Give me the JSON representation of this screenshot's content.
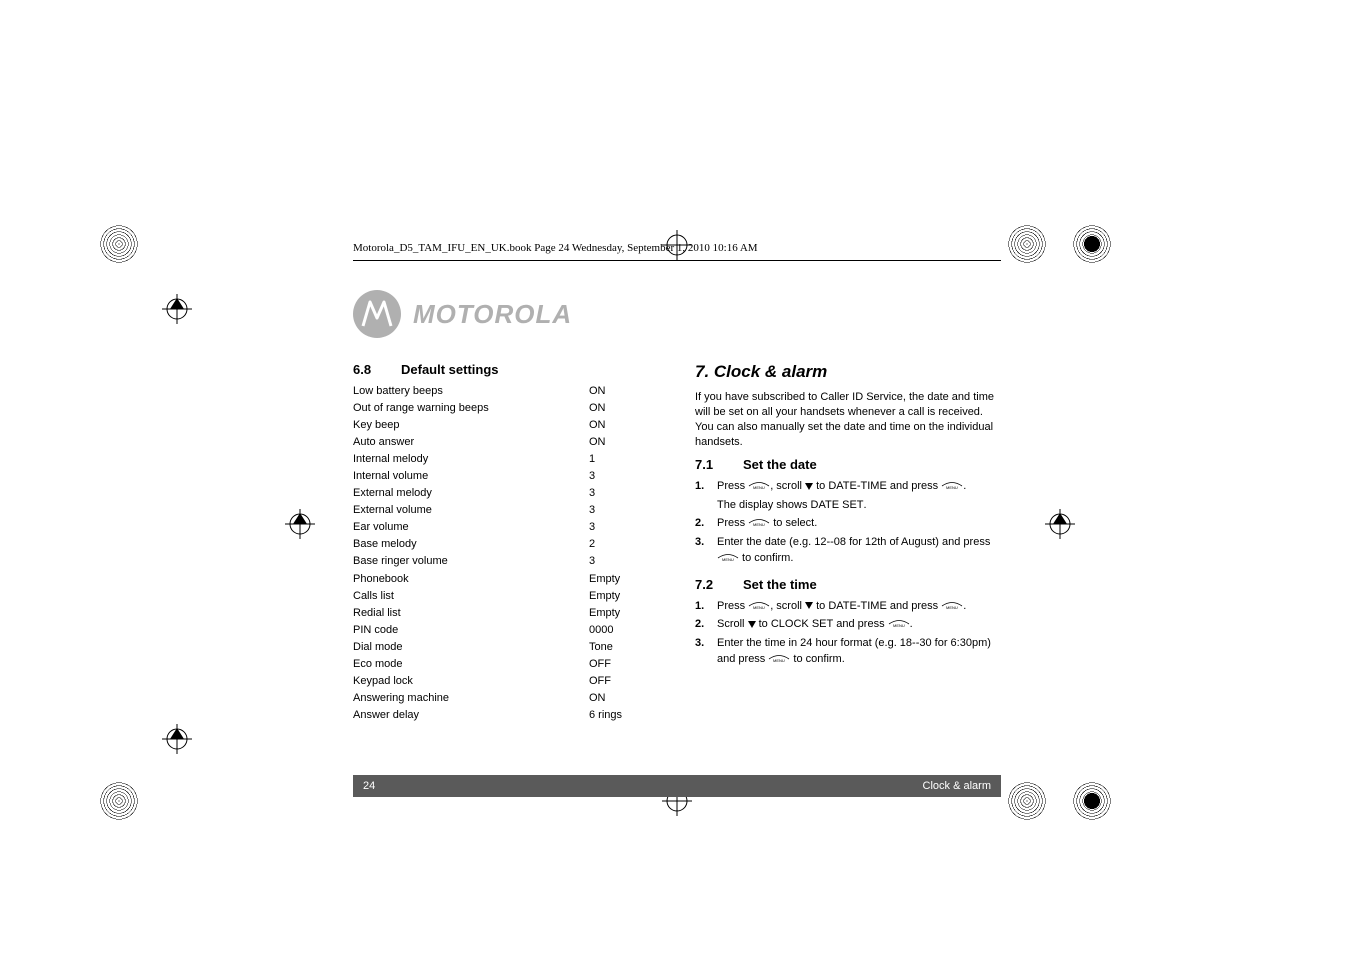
{
  "header_text": "Motorola_D5_TAM_IFU_EN_UK.book  Page 24  Wednesday, September 1, 2010  10:16 AM",
  "brand": "MOTOROLA",
  "left": {
    "section_num": "6.8",
    "section_title": "Default settings",
    "settings": [
      {
        "label": "Low battery beeps",
        "val": "ON"
      },
      {
        "label": "Out of range warning beeps",
        "val": "ON"
      },
      {
        "label": "Key beep",
        "val": "ON"
      },
      {
        "label": "Auto answer",
        "val": "ON"
      },
      {
        "label": "Internal melody",
        "val": "1"
      },
      {
        "label": "Internal volume",
        "val": "3"
      },
      {
        "label": "External melody",
        "val": "3"
      },
      {
        "label": "External volume",
        "val": "3"
      },
      {
        "label": "Ear volume",
        "val": "3"
      },
      {
        "label": "Base melody",
        "val": "2"
      },
      {
        "label": "Base ringer volume",
        "val": "3"
      },
      {
        "label": "Phonebook",
        "val": "Empty"
      },
      {
        "label": "Calls list",
        "val": "Empty"
      },
      {
        "label": "Redial list",
        "val": "Empty"
      },
      {
        "label": "PIN code",
        "val": "0000"
      },
      {
        "label": "Dial mode",
        "val": "Tone"
      },
      {
        "label": "Eco mode",
        "val": "OFF"
      },
      {
        "label": "Keypad lock",
        "val": "OFF"
      },
      {
        "label": "Answering machine",
        "val": "ON"
      },
      {
        "label": "Answer delay",
        "val": "6 rings"
      }
    ]
  },
  "right": {
    "chapter": "7. Clock & alarm",
    "intro": "If you have subscribed to Caller ID Service, the date and time will be set on all your handsets whenever a call is received. You can also manually set the date and time on the individual handsets.",
    "s71_num": "7.1",
    "s71_title": "Set the date",
    "s71_steps": {
      "s1a": "Press ",
      "s1b": ", scroll ",
      "s1c": " to ",
      "s1_dt": "DATE-TIME",
      "s1d": " and press ",
      "s1e": ".",
      "s1_sub_a": "The display shows ",
      "s1_sub_b": "DATE SET",
      "s1_sub_c": ".",
      "s2a": "Press ",
      "s2b": " to select.",
      "s3a": "Enter the date (e.g. 12--08 for 12th of August) and press ",
      "s3b": " to confirm."
    },
    "s72_num": "7.2",
    "s72_title": "Set the time",
    "s72_steps": {
      "s1a": "Press ",
      "s1b": ", scroll ",
      "s1c": " to ",
      "s1_dt": "DATE-TIME",
      "s1d": " and press ",
      "s1e": ".",
      "s2a": "Scroll ",
      "s2b": " to ",
      "s2_cs": "CLOCK SET",
      "s2c": " and press ",
      "s2d": ".",
      "s3a": "Enter the time in 24 hour format (e.g. 18--30 for 6:30pm) and press ",
      "s3b": " to confirm."
    }
  },
  "footer": {
    "page": "24",
    "title": "Clock & alarm"
  },
  "step_nums": {
    "n1": "1.",
    "n2": "2.",
    "n3": "3."
  }
}
